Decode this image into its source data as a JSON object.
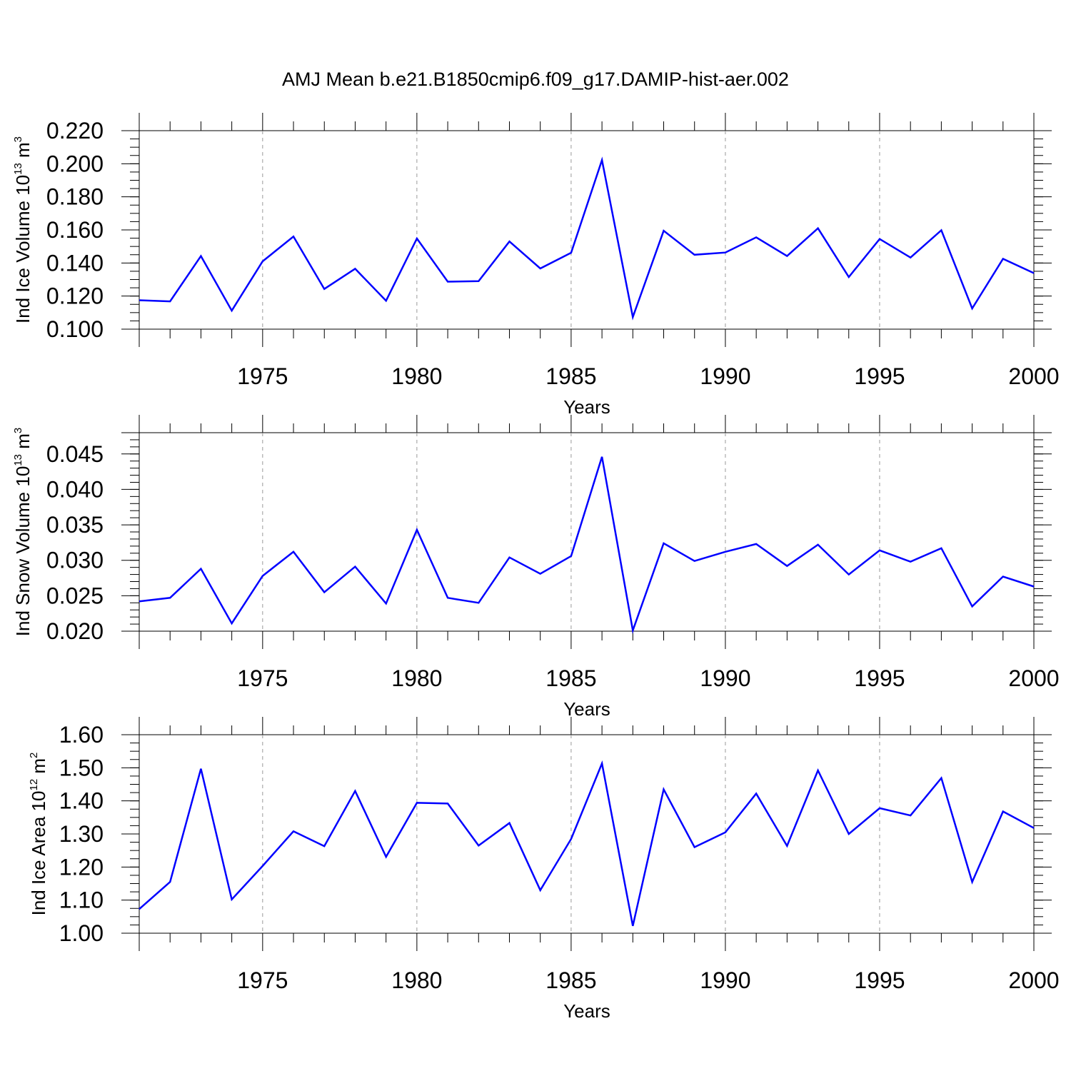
{
  "figure": {
    "title": "AMJ Mean b.e21.B1850cmip6.f09_g17.DAMIP-hist-aer.002"
  },
  "chart_data": [
    {
      "type": "line",
      "ylabel_main": "Ind Ice Volume 10",
      "ylabel_exp1": "13",
      "ylabel_unit": " m",
      "ylabel_exp2": "3",
      "xlabel": "Years",
      "xlim": [
        1971,
        2000
      ],
      "ylim": [
        0.1,
        0.22
      ],
      "yticks": [
        0.1,
        0.12,
        0.14,
        0.16,
        0.18,
        0.2,
        0.22
      ],
      "ytick_labels": [
        "0.100",
        "0.120",
        "0.140",
        "0.160",
        "0.180",
        "0.200",
        "0.220"
      ],
      "yminor_step": 0.005,
      "xticks": [
        1975,
        1980,
        1985,
        1990,
        1995,
        2000
      ],
      "xtick_labels": [
        "1975",
        "1980",
        "1985",
        "1990",
        "1995",
        "2000"
      ],
      "grid_x": [
        1975,
        1980,
        1985,
        1990,
        1995
      ],
      "color": "#0000ff",
      "x": [
        1971,
        1972,
        1973,
        1974,
        1975,
        1976,
        1977,
        1978,
        1979,
        1980,
        1981,
        1982,
        1983,
        1984,
        1985,
        1986,
        1987,
        1988,
        1989,
        1990,
        1991,
        1992,
        1993,
        1994,
        1995,
        1996,
        1997,
        1998,
        1999,
        2000
      ],
      "values": [
        0.1175,
        0.1168,
        0.1442,
        0.1112,
        0.141,
        0.156,
        0.1243,
        0.1365,
        0.1172,
        0.1548,
        0.1287,
        0.129,
        0.153,
        0.1367,
        0.1462,
        0.2022,
        0.1073,
        0.1595,
        0.145,
        0.1463,
        0.1555,
        0.1442,
        0.161,
        0.1315,
        0.1545,
        0.1433,
        0.1598,
        0.1125,
        0.1425,
        0.1339
      ]
    },
    {
      "type": "line",
      "ylabel_main": "Ind Snow Volume 10",
      "ylabel_exp1": "13",
      "ylabel_unit": " m",
      "ylabel_exp2": "3",
      "xlabel": "Years",
      "xlim": [
        1971,
        2000
      ],
      "ylim": [
        0.02,
        0.048
      ],
      "yticks": [
        0.02,
        0.025,
        0.03,
        0.035,
        0.04,
        0.045
      ],
      "ytick_labels": [
        "0.020",
        "0.025",
        "0.030",
        "0.035",
        "0.040",
        "0.045"
      ],
      "yminor_step": 0.001,
      "xticks": [
        1975,
        1980,
        1985,
        1990,
        1995,
        2000
      ],
      "xtick_labels": [
        "1975",
        "1980",
        "1985",
        "1990",
        "1995",
        "2000"
      ],
      "grid_x": [
        1975,
        1980,
        1985,
        1990,
        1995
      ],
      "color": "#0000ff",
      "x": [
        1971,
        1972,
        1973,
        1974,
        1975,
        1976,
        1977,
        1978,
        1979,
        1980,
        1981,
        1982,
        1983,
        1984,
        1985,
        1986,
        1987,
        1988,
        1989,
        1990,
        1991,
        1992,
        1993,
        1994,
        1995,
        1996,
        1997,
        1998,
        1999,
        2000
      ],
      "values": [
        0.0242,
        0.0247,
        0.0288,
        0.0211,
        0.0278,
        0.0312,
        0.0255,
        0.0291,
        0.0239,
        0.0343,
        0.0247,
        0.024,
        0.0304,
        0.0281,
        0.0306,
        0.0446,
        0.0201,
        0.0324,
        0.0299,
        0.0312,
        0.0323,
        0.0292,
        0.0322,
        0.028,
        0.0314,
        0.0298,
        0.0317,
        0.0235,
        0.0277,
        0.0263
      ]
    },
    {
      "type": "line",
      "ylabel_main": "Ind Ice Area 10",
      "ylabel_exp1": "12",
      "ylabel_unit": " m",
      "ylabel_exp2": "2",
      "xlabel": "Years",
      "xlim": [
        1971,
        2000
      ],
      "ylim": [
        1.0,
        1.6
      ],
      "yticks": [
        1.0,
        1.1,
        1.2,
        1.3,
        1.4,
        1.5,
        1.6
      ],
      "ytick_labels": [
        "1.00",
        "1.10",
        "1.20",
        "1.30",
        "1.40",
        "1.50",
        "1.60"
      ],
      "yminor_step": 0.025,
      "xticks": [
        1975,
        1980,
        1985,
        1990,
        1995,
        2000
      ],
      "xtick_labels": [
        "1975",
        "1980",
        "1985",
        "1990",
        "1995",
        "2000"
      ],
      "grid_x": [
        1975,
        1980,
        1985,
        1990,
        1995
      ],
      "color": "#0000ff",
      "x": [
        1971,
        1972,
        1973,
        1974,
        1975,
        1976,
        1977,
        1978,
        1979,
        1980,
        1981,
        1982,
        1983,
        1984,
        1985,
        1986,
        1987,
        1988,
        1989,
        1990,
        1991,
        1992,
        1993,
        1994,
        1995,
        1996,
        1997,
        1998,
        1999,
        2000
      ],
      "values": [
        1.073,
        1.155,
        1.497,
        1.102,
        1.203,
        1.308,
        1.263,
        1.43,
        1.231,
        1.394,
        1.392,
        1.265,
        1.333,
        1.13,
        1.285,
        1.513,
        1.022,
        1.435,
        1.26,
        1.305,
        1.422,
        1.264,
        1.492,
        1.3,
        1.378,
        1.356,
        1.469,
        1.155,
        1.368,
        1.318
      ]
    }
  ]
}
